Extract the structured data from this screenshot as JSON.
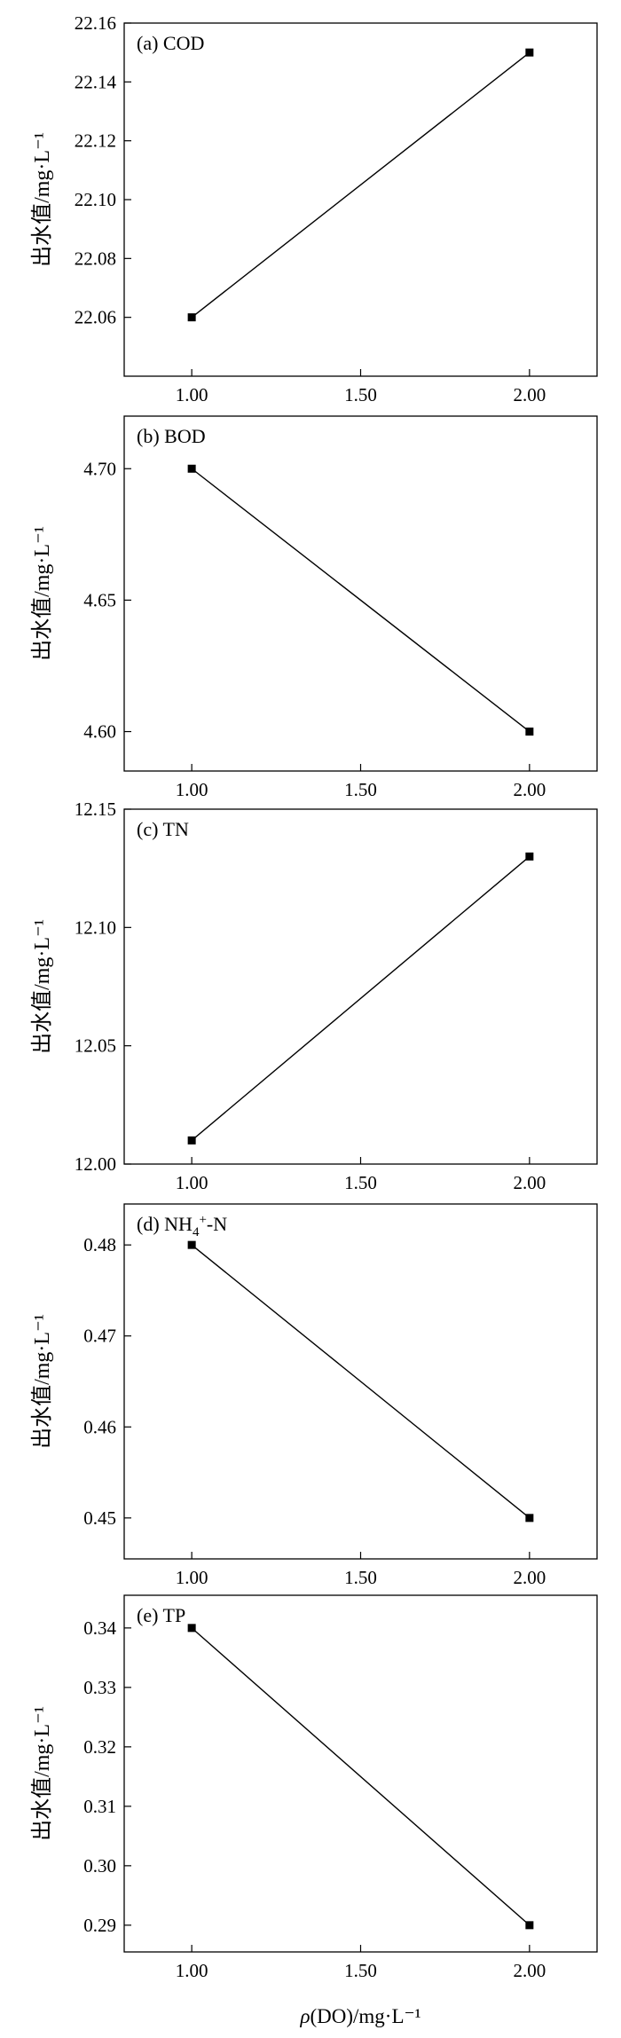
{
  "chart_data": [
    {
      "type": "line",
      "label": "(a) COD",
      "x": [
        1.0,
        2.0
      ],
      "y": [
        22.06,
        22.15
      ],
      "xlim": [
        0.8,
        2.2
      ],
      "ylim": [
        22.04,
        22.16
      ],
      "xticks": [
        "1.00",
        "1.50",
        "2.00"
      ],
      "yticks": [
        "22.06",
        "22.08",
        "22.10",
        "22.12",
        "22.14",
        "22.16"
      ],
      "ylabel": "出水值/mg·L⁻¹",
      "grid": false
    },
    {
      "type": "line",
      "label": "(b) BOD",
      "x": [
        1.0,
        2.0
      ],
      "y": [
        4.7,
        4.6
      ],
      "xlim": [
        0.8,
        2.2
      ],
      "ylim": [
        4.585,
        4.72
      ],
      "xticks": [
        "1.00",
        "1.50",
        "2.00"
      ],
      "yticks": [
        "4.60",
        "4.65",
        "4.70"
      ],
      "ylabel": "出水值/mg·L⁻¹",
      "grid": false
    },
    {
      "type": "line",
      "label": "(c) TN",
      "x": [
        1.0,
        2.0
      ],
      "y": [
        12.01,
        12.13
      ],
      "xlim": [
        0.8,
        2.2
      ],
      "ylim": [
        12.0,
        12.15
      ],
      "xticks": [
        "1.00",
        "1.50",
        "2.00"
      ],
      "yticks": [
        "12.00",
        "12.05",
        "12.10",
        "12.15"
      ],
      "ylabel": "出水值/mg·L⁻¹",
      "grid": false
    },
    {
      "type": "line",
      "label": "(d) NH4+-N",
      "x": [
        1.0,
        2.0
      ],
      "y": [
        0.48,
        0.45
      ],
      "xlim": [
        0.8,
        2.2
      ],
      "ylim": [
        0.4455,
        0.4845
      ],
      "xticks": [
        "1.00",
        "1.50",
        "2.00"
      ],
      "yticks": [
        "0.45",
        "0.46",
        "0.47",
        "0.48"
      ],
      "ylabel": "出水值/mg·L⁻¹",
      "grid": false
    },
    {
      "type": "line",
      "label": "(e) TP",
      "x": [
        1.0,
        2.0
      ],
      "y": [
        0.34,
        0.29
      ],
      "xlim": [
        0.8,
        2.2
      ],
      "ylim": [
        0.2855,
        0.3455
      ],
      "xticks": [
        "1.00",
        "1.50",
        "2.00"
      ],
      "yticks": [
        "0.29",
        "0.30",
        "0.31",
        "0.32",
        "0.33",
        "0.34"
      ],
      "ylabel": "出水值/mg·L⁻¹",
      "grid": false
    }
  ],
  "xlabel": "ρ(DO)/mg·L⁻¹"
}
